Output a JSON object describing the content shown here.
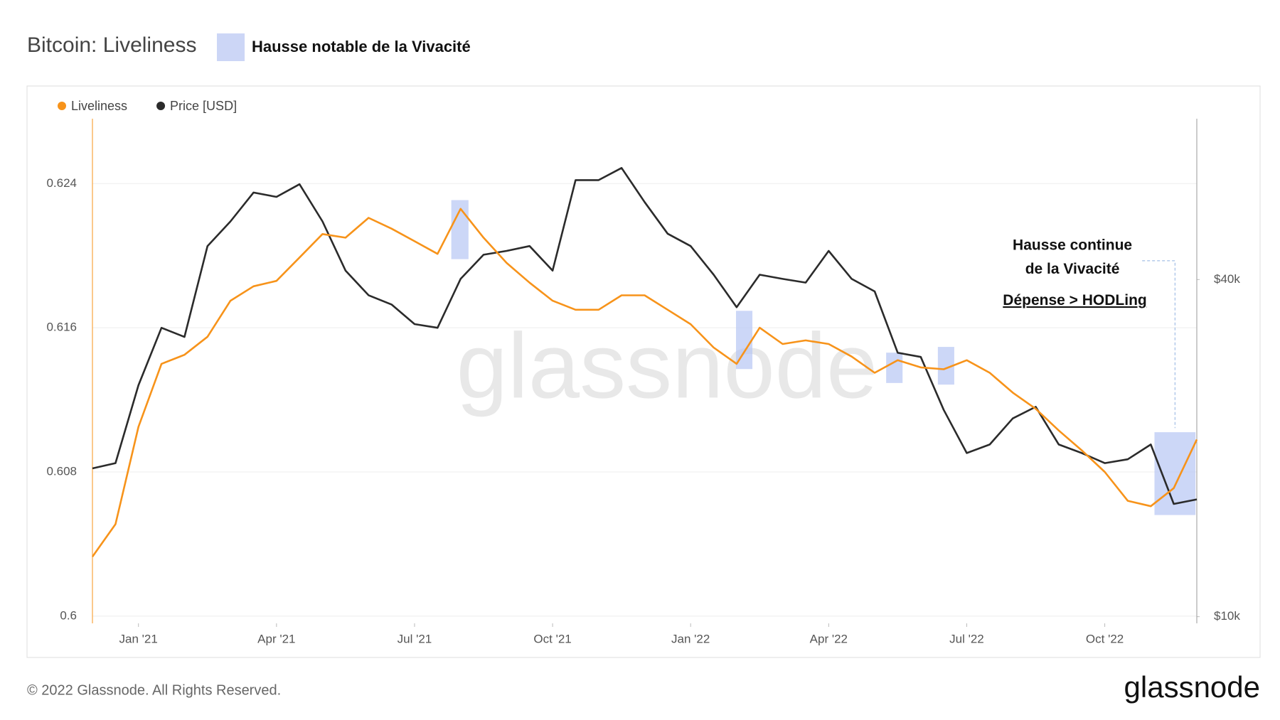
{
  "chart_data": {
    "type": "line",
    "title": "Bitcoin: Liveliness",
    "highlight_label": "Hausse notable de la Vivacité",
    "annotations": [
      "Hausse continue",
      "de la Vivacité",
      "Dépense > HODLing"
    ],
    "watermark": "glassnode",
    "categories": [
      null,
      null,
      "Jan '21",
      null,
      null,
      null,
      null,
      null,
      "Apr '21",
      null,
      null,
      null,
      null,
      null,
      "Jul '21",
      null,
      null,
      null,
      null,
      null,
      "Oct '21",
      null,
      null,
      null,
      null,
      null,
      "Jan '22",
      null,
      null,
      null,
      null,
      null,
      "Apr '22",
      null,
      null,
      null,
      null,
      null,
      "Jul '22",
      null,
      null,
      null,
      null,
      null,
      "Oct '22",
      null,
      null,
      null,
      null
    ],
    "series": [
      {
        "name": "Liveliness",
        "color": "#f7931a",
        "values": [
          0.6033,
          0.6051,
          0.6105,
          0.614,
          0.6145,
          0.6155,
          0.6175,
          0.6183,
          0.6186,
          0.6199,
          0.6212,
          0.621,
          0.6221,
          0.6215,
          0.6208,
          0.6201,
          0.6226,
          0.621,
          0.6196,
          0.6185,
          0.6175,
          0.617,
          0.617,
          0.6178,
          0.6178,
          0.617,
          0.6162,
          0.6149,
          0.614,
          0.616,
          0.6151,
          0.6153,
          0.6151,
          0.6144,
          0.6135,
          0.6142,
          0.6138,
          0.6137,
          0.6142,
          0.6135,
          0.6124,
          0.6115,
          0.6103,
          0.6092,
          0.608,
          0.6064,
          0.6061,
          0.6071,
          0.6098
        ]
      },
      {
        "name": "Price [USD]",
        "color": "#2b2b2b",
        "axis": "y2",
        "values": [
          18400,
          18800,
          25900,
          32800,
          31600,
          45900,
          50800,
          57200,
          56200,
          59200,
          50800,
          41500,
          37500,
          36100,
          33300,
          32800,
          40100,
          44300,
          45000,
          45900,
          41500,
          60200,
          60200,
          63300,
          55000,
          48300,
          45900,
          40800,
          35700,
          40800,
          40100,
          39500,
          45000,
          40100,
          38100,
          29600,
          29100,
          23400,
          19600,
          20300,
          22600,
          23700,
          20300,
          19600,
          18800,
          19100,
          20300,
          15900,
          16200
        ]
      }
    ],
    "ylim": [
      0.5996,
      0.6276
    ],
    "yticks": [
      0.6,
      0.608,
      0.616,
      0.624
    ],
    "y2lim": [
      9730,
      77500
    ],
    "y2log": true,
    "y2ticks": [
      {
        "value": 10000,
        "label": "$10k"
      },
      {
        "value": 40000,
        "label": "$40k"
      }
    ],
    "grid": true
  },
  "footer": {
    "copyright": "© 2022 Glassnode. All Rights Reserved.",
    "logo": "glassnode"
  }
}
